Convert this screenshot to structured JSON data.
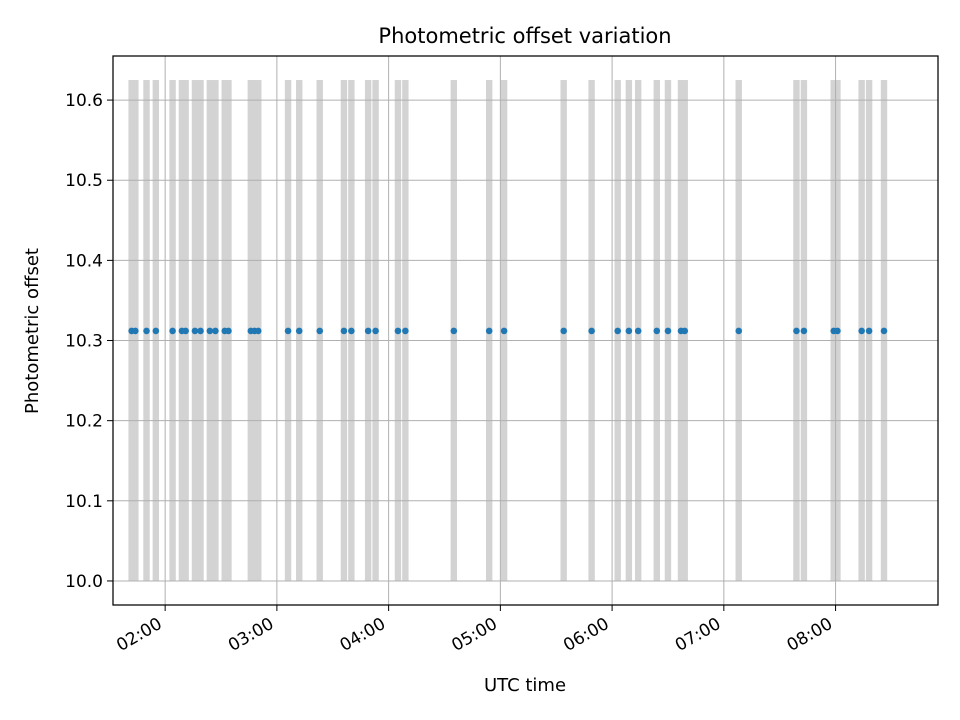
{
  "chart_data": {
    "type": "scatter",
    "title": "Photometric offset variation",
    "xlabel": "UTC time",
    "ylabel": "Photometric offset",
    "x_unit": "UTC time (HH:MM)",
    "xlim": [
      "01:32",
      "08:55"
    ],
    "ylim": [
      9.97,
      10.655
    ],
    "grid": true,
    "x_ticks": [
      "02:00",
      "03:00",
      "04:00",
      "05:00",
      "06:00",
      "07:00",
      "08:00"
    ],
    "y_ticks": [
      "10.0",
      "10.1",
      "10.2",
      "10.3",
      "10.4",
      "10.5",
      "10.6"
    ],
    "y_tick_values": [
      10.0,
      10.1,
      10.2,
      10.3,
      10.4,
      10.5,
      10.6
    ],
    "span_range": [
      10.0,
      10.625
    ],
    "span_color": "#d3d3d3",
    "marker_color": "#1f77b4",
    "points": [
      {
        "x": "01:42",
        "y": 10.312
      },
      {
        "x": "01:44",
        "y": 10.312
      },
      {
        "x": "01:50",
        "y": 10.312
      },
      {
        "x": "01:55",
        "y": 10.312
      },
      {
        "x": "02:04",
        "y": 10.312
      },
      {
        "x": "02:09",
        "y": 10.312
      },
      {
        "x": "02:11",
        "y": 10.312
      },
      {
        "x": "02:16",
        "y": 10.312
      },
      {
        "x": "02:19",
        "y": 10.312
      },
      {
        "x": "02:24",
        "y": 10.312
      },
      {
        "x": "02:27",
        "y": 10.312
      },
      {
        "x": "02:32",
        "y": 10.312
      },
      {
        "x": "02:34",
        "y": 10.312
      },
      {
        "x": "02:46",
        "y": 10.312
      },
      {
        "x": "02:48",
        "y": 10.312
      },
      {
        "x": "02:50",
        "y": 10.312
      },
      {
        "x": "03:06",
        "y": 10.312
      },
      {
        "x": "03:12",
        "y": 10.312
      },
      {
        "x": "03:23",
        "y": 10.312
      },
      {
        "x": "03:36",
        "y": 10.312
      },
      {
        "x": "03:40",
        "y": 10.312
      },
      {
        "x": "03:49",
        "y": 10.312
      },
      {
        "x": "03:53",
        "y": 10.312
      },
      {
        "x": "04:05",
        "y": 10.312
      },
      {
        "x": "04:09",
        "y": 10.312
      },
      {
        "x": "04:35",
        "y": 10.312
      },
      {
        "x": "04:54",
        "y": 10.312
      },
      {
        "x": "05:02",
        "y": 10.312
      },
      {
        "x": "05:34",
        "y": 10.312
      },
      {
        "x": "05:49",
        "y": 10.312
      },
      {
        "x": "06:03",
        "y": 10.312
      },
      {
        "x": "06:09",
        "y": 10.312
      },
      {
        "x": "06:14",
        "y": 10.312
      },
      {
        "x": "06:24",
        "y": 10.312
      },
      {
        "x": "06:30",
        "y": 10.312
      },
      {
        "x": "06:37",
        "y": 10.312
      },
      {
        "x": "06:39",
        "y": 10.312
      },
      {
        "x": "07:08",
        "y": 10.312
      },
      {
        "x": "07:39",
        "y": 10.312
      },
      {
        "x": "07:43",
        "y": 10.312
      },
      {
        "x": "07:59",
        "y": 10.312
      },
      {
        "x": "08:01",
        "y": 10.312
      },
      {
        "x": "08:14",
        "y": 10.312
      },
      {
        "x": "08:18",
        "y": 10.312
      },
      {
        "x": "08:26",
        "y": 10.312
      }
    ]
  }
}
